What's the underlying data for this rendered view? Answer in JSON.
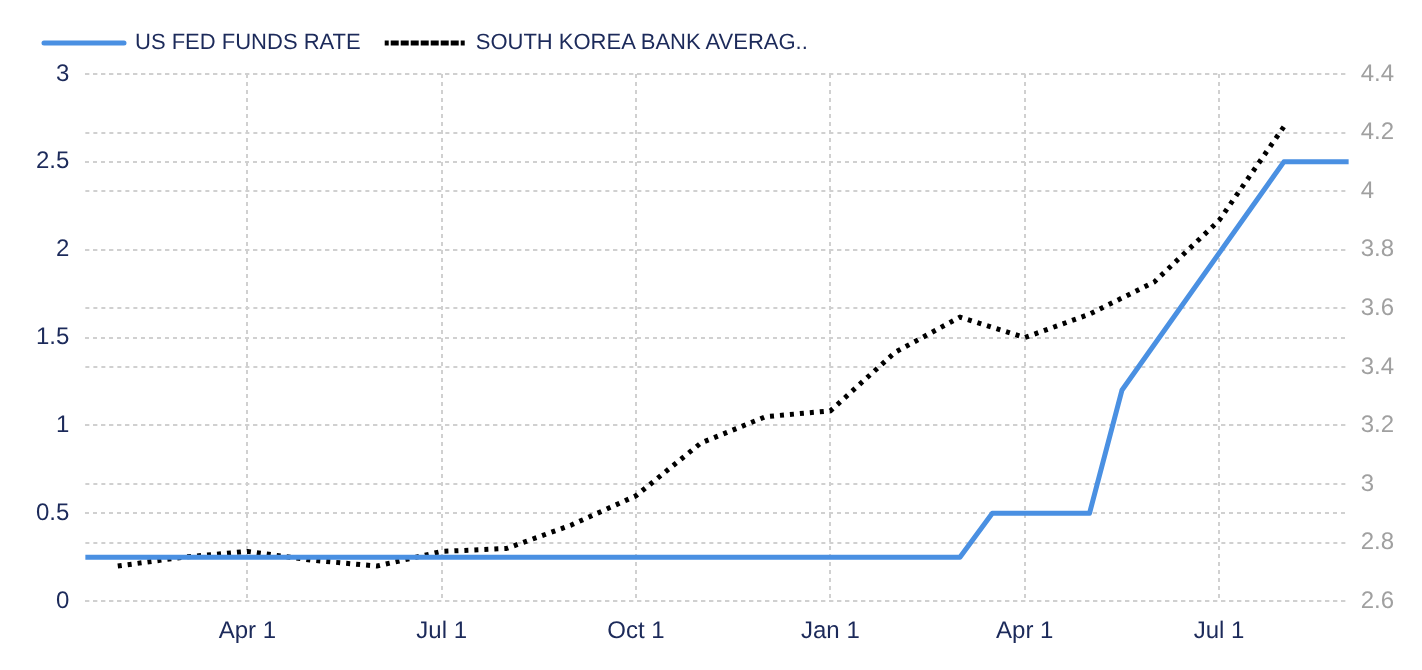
{
  "chart_data": {
    "type": "line",
    "categories": [
      null,
      null,
      null,
      null,
      null,
      "Apr 1",
      null,
      null,
      null,
      null,
      null,
      "Jul 1",
      null,
      null,
      null,
      null,
      null,
      "Oct 1",
      null,
      null,
      null,
      null,
      null,
      "Jan 1",
      null,
      null,
      null,
      null,
      null,
      "Apr 1",
      null,
      null,
      null,
      null,
      null,
      "Jul 1",
      null,
      null,
      null,
      null
    ],
    "ylim": [
      0,
      3
    ],
    "yticks": [
      0,
      0.5,
      1,
      1.5,
      2,
      2.5,
      3
    ],
    "y2lim": [
      2.6,
      4.4
    ],
    "y2ticks": [
      2.6,
      2.8,
      3,
      3.2,
      3.4,
      3.6,
      3.8,
      4,
      4.2,
      4.4
    ],
    "grid": true,
    "legend": "top left",
    "marker": "none",
    "series": [
      {
        "name": "US FED FUNDS RATE",
        "color": "#4a90e2",
        "line_style": "solid",
        "values": [
          0.25,
          null,
          null,
          null,
          null,
          null,
          null,
          null,
          null,
          null,
          null,
          null,
          null,
          null,
          null,
          null,
          null,
          null,
          null,
          null,
          null,
          null,
          null,
          null,
          null,
          null,
          null,
          0.25,
          0.5,
          null,
          null,
          0.5,
          1.2,
          null,
          null,
          null,
          null,
          2.5,
          null,
          2.5
        ]
      },
      {
        "name": "SOUTH KOREA BANK AVERAG..",
        "color": "#000000",
        "line_style": "dotted",
        "axis": "y2",
        "values": [
          null,
          2.72,
          null,
          2.75,
          null,
          2.77,
          null,
          2.74,
          null,
          2.72,
          null,
          2.77,
          null,
          2.78,
          null,
          2.86,
          null,
          2.96,
          null,
          3.14,
          null,
          3.23,
          null,
          3.25,
          null,
          3.45,
          null,
          3.57,
          null,
          3.5,
          null,
          3.58,
          null,
          3.69,
          null,
          3.9,
          null,
          4.22,
          null,
          null
        ]
      }
    ]
  }
}
